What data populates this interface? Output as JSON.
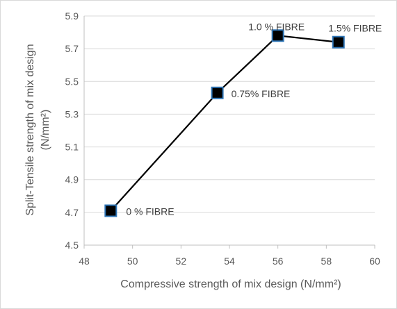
{
  "chart_data": {
    "type": "scatter",
    "title": "",
    "xlabel": "Compressive strength of mix design (N/mm²)",
    "ylabel_line1": "Split-Tensile strength of mix design",
    "ylabel_line2": "(N/mm²)",
    "xlim": [
      48,
      60
    ],
    "ylim": [
      4.5,
      5.9
    ],
    "xticks": [
      "48",
      "50",
      "52",
      "54",
      "56",
      "58",
      "60"
    ],
    "yticks": [
      "4.5",
      "4.7",
      "4.9",
      "5.1",
      "5.3",
      "5.5",
      "5.7",
      "5.9"
    ],
    "grid": "horizontal",
    "series": [
      {
        "x": [
          49.1,
          53.5,
          56.0,
          58.5
        ],
        "y": [
          4.71,
          5.43,
          5.78,
          5.74
        ],
        "labels": [
          "0 % FIBRE",
          "0.75% FIBRE",
          "1.0 % FIBRE",
          "1.5% FIBRE"
        ]
      }
    ],
    "marker_fill": "#000000",
    "marker_stroke": "#2e75b6",
    "line_color": "#000000",
    "grid_color": "#d9d9d9",
    "text_color": "#595959"
  }
}
